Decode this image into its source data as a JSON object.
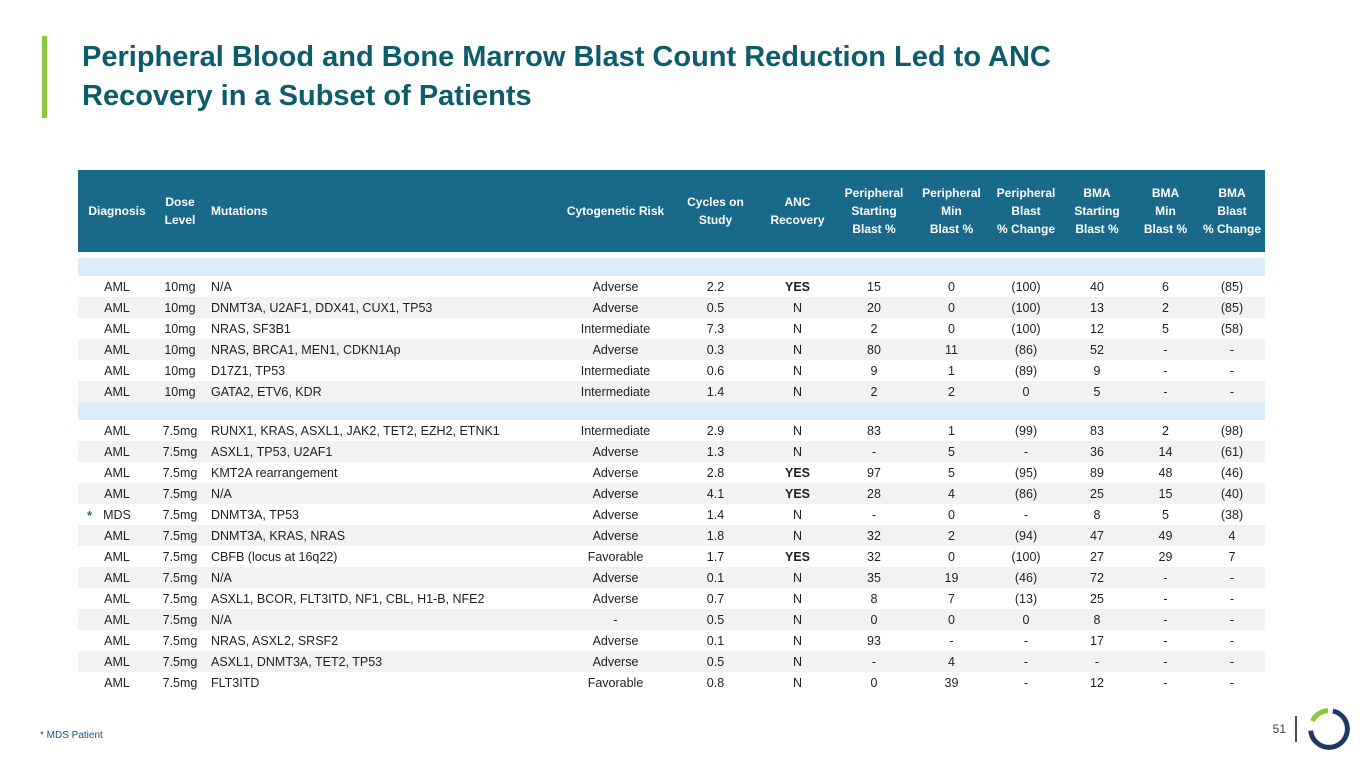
{
  "title": "Peripheral Blood and Bone Marrow Blast Count Reduction Led to ANC\nRecovery in a Subset of Patients",
  "footnote": "* MDS Patient",
  "page_number": "51",
  "colors": {
    "header_bg": "#19698b",
    "band_bg": "#d9eef9",
    "stripe_bg": "#f2f2f2",
    "title_color": "#0d5c6b",
    "accent_green": "#8dc63f",
    "footnote_color": "#1f4e79",
    "cell_text": "#1f1f1f",
    "asterisk_color": "#1b7185",
    "logo_navy": "#1f3864"
  },
  "table": {
    "columns": [
      {
        "id": "diagnosis",
        "label": "Diagnosis"
      },
      {
        "id": "dose",
        "label": "Dose\nLevel"
      },
      {
        "id": "mutations",
        "label": "Mutations"
      },
      {
        "id": "risk",
        "label": "Cytogenetic Risk"
      },
      {
        "id": "cycles",
        "label": "Cycles on\nStudy"
      },
      {
        "id": "anc",
        "label": "ANC\nRecovery"
      },
      {
        "id": "p_start",
        "label": "Peripheral\nStarting\nBlast %"
      },
      {
        "id": "p_min",
        "label": "Peripheral\nMin\nBlast %"
      },
      {
        "id": "p_change",
        "label": "Peripheral\nBlast\n% Change"
      },
      {
        "id": "b_start",
        "label": "BMA\nStarting\nBlast %"
      },
      {
        "id": "b_min",
        "label": "BMA\nMin\nBlast %"
      },
      {
        "id": "b_change",
        "label": "BMA\nBlast\n% Change"
      }
    ],
    "groups": [
      {
        "rows": [
          {
            "diagnosis": "AML",
            "dose": "10mg",
            "mutations": "N/A",
            "risk": "Adverse",
            "cycles": "2.2",
            "anc": "YES",
            "p_start": "15",
            "p_min": "0",
            "p_change": "(100)",
            "b_start": "40",
            "b_min": "6",
            "b_change": "(85)"
          },
          {
            "diagnosis": "AML",
            "dose": "10mg",
            "mutations": "DNMT3A, U2AF1, DDX41, CUX1, TP53",
            "risk": "Adverse",
            "cycles": "0.5",
            "anc": "N",
            "p_start": "20",
            "p_min": "0",
            "p_change": "(100)",
            "b_start": "13",
            "b_min": "2",
            "b_change": "(85)"
          },
          {
            "diagnosis": "AML",
            "dose": "10mg",
            "mutations": "NRAS, SF3B1",
            "risk": "Intermediate",
            "cycles": "7.3",
            "anc": "N",
            "p_start": "2",
            "p_min": "0",
            "p_change": "(100)",
            "b_start": "12",
            "b_min": "5",
            "b_change": "(58)"
          },
          {
            "diagnosis": "AML",
            "dose": "10mg",
            "mutations": "NRAS, BRCA1, MEN1, CDKN1Ap",
            "risk": "Adverse",
            "cycles": "0.3",
            "anc": "N",
            "p_start": "80",
            "p_min": "11",
            "p_change": "(86)",
            "b_start": "52",
            "b_min": "-",
            "b_change": "-"
          },
          {
            "diagnosis": "AML",
            "dose": "10mg",
            "mutations": "D17Z1, TP53",
            "risk": "Intermediate",
            "cycles": "0.6",
            "anc": "N",
            "p_start": "9",
            "p_min": "1",
            "p_change": "(89)",
            "b_start": "9",
            "b_min": "-",
            "b_change": "-"
          },
          {
            "diagnosis": "AML",
            "dose": "10mg",
            "mutations": "GATA2, ETV6, KDR",
            "risk": "Intermediate",
            "cycles": "1.4",
            "anc": "N",
            "p_start": "2",
            "p_min": "2",
            "p_change": "0",
            "b_start": "5",
            "b_min": "-",
            "b_change": "-"
          }
        ]
      },
      {
        "rows": [
          {
            "diagnosis": "AML",
            "dose": "7.5mg",
            "mutations": "RUNX1, KRAS, ASXL1, JAK2, TET2, EZH2, ETNK1",
            "risk": "Intermediate",
            "cycles": "2.9",
            "anc": "N",
            "p_start": "83",
            "p_min": "1",
            "p_change": "(99)",
            "b_start": "83",
            "b_min": "2",
            "b_change": "(98)"
          },
          {
            "diagnosis": "AML",
            "dose": "7.5mg",
            "mutations": "ASXL1, TP53, U2AF1",
            "risk": "Adverse",
            "cycles": "1.3",
            "anc": "N",
            "p_start": "-",
            "p_min": "5",
            "p_change": "-",
            "b_start": "36",
            "b_min": "14",
            "b_change": "(61)"
          },
          {
            "diagnosis": "AML",
            "dose": "7.5mg",
            "mutations": "KMT2A rearrangement",
            "risk": "Adverse",
            "cycles": "2.8",
            "anc": "YES",
            "p_start": "97",
            "p_min": "5",
            "p_change": "(95)",
            "b_start": "89",
            "b_min": "48",
            "b_change": "(46)"
          },
          {
            "diagnosis": "AML",
            "dose": "7.5mg",
            "mutations": "N/A",
            "risk": "Adverse",
            "cycles": "4.1",
            "anc": "YES",
            "p_start": "28",
            "p_min": "4",
            "p_change": "(86)",
            "b_start": "25",
            "b_min": "15",
            "b_change": "(40)"
          },
          {
            "diagnosis": "MDS",
            "marker": "*",
            "dose": "7.5mg",
            "mutations": "DNMT3A, TP53",
            "risk": "Adverse",
            "cycles": "1.4",
            "anc": "N",
            "p_start": "-",
            "p_min": "0",
            "p_change": "-",
            "b_start": "8",
            "b_min": "5",
            "b_change": "(38)"
          },
          {
            "diagnosis": "AML",
            "dose": "7.5mg",
            "mutations": "DNMT3A, KRAS, NRAS",
            "risk": "Adverse",
            "cycles": "1.8",
            "anc": "N",
            "p_start": "32",
            "p_min": "2",
            "p_change": "(94)",
            "b_start": "47",
            "b_min": "49",
            "b_change": "4"
          },
          {
            "diagnosis": "AML",
            "dose": "7.5mg",
            "mutations": "CBFB (locus at 16q22)",
            "risk": "Favorable",
            "cycles": "1.7",
            "anc": "YES",
            "p_start": "32",
            "p_min": "0",
            "p_change": "(100)",
            "b_start": "27",
            "b_min": "29",
            "b_change": "7"
          },
          {
            "diagnosis": "AML",
            "dose": "7.5mg",
            "mutations": "N/A",
            "risk": "Adverse",
            "cycles": "0.1",
            "anc": "N",
            "p_start": "35",
            "p_min": "19",
            "p_change": "(46)",
            "b_start": "72",
            "b_min": "-",
            "b_change": "-"
          },
          {
            "diagnosis": "AML",
            "dose": "7.5mg",
            "mutations": "ASXL1, BCOR, FLT3ITD, NF1, CBL, H1-B, NFE2",
            "risk": "Adverse",
            "cycles": "0.7",
            "anc": "N",
            "p_start": "8",
            "p_min": "7",
            "p_change": "(13)",
            "b_start": "25",
            "b_min": "-",
            "b_change": "-"
          },
          {
            "diagnosis": "AML",
            "dose": "7.5mg",
            "mutations": "N/A",
            "risk": "-",
            "cycles": "0.5",
            "anc": "N",
            "p_start": "0",
            "p_min": "0",
            "p_change": "0",
            "b_start": "8",
            "b_min": "-",
            "b_change": "-"
          },
          {
            "diagnosis": "AML",
            "dose": "7.5mg",
            "mutations": "NRAS, ASXL2, SRSF2",
            "risk": "Adverse",
            "cycles": "0.1",
            "anc": "N",
            "p_start": "93",
            "p_min": "-",
            "p_change": "-",
            "b_start": "17",
            "b_min": "-",
            "b_change": "-"
          },
          {
            "diagnosis": "AML",
            "dose": "7.5mg",
            "mutations": "ASXL1, DNMT3A, TET2, TP53",
            "risk": "Adverse",
            "cycles": "0.5",
            "anc": "N",
            "p_start": "-",
            "p_min": "4",
            "p_change": "-",
            "b_start": "-",
            "b_min": "-",
            "b_change": "-"
          },
          {
            "diagnosis": "AML",
            "dose": "7.5mg",
            "mutations": "FLT3ITD",
            "risk": "Favorable",
            "cycles": "0.8",
            "anc": "N",
            "p_start": "0",
            "p_min": "39",
            "p_change": "-",
            "b_start": "12",
            "b_min": "-",
            "b_change": "-"
          }
        ]
      }
    ]
  }
}
